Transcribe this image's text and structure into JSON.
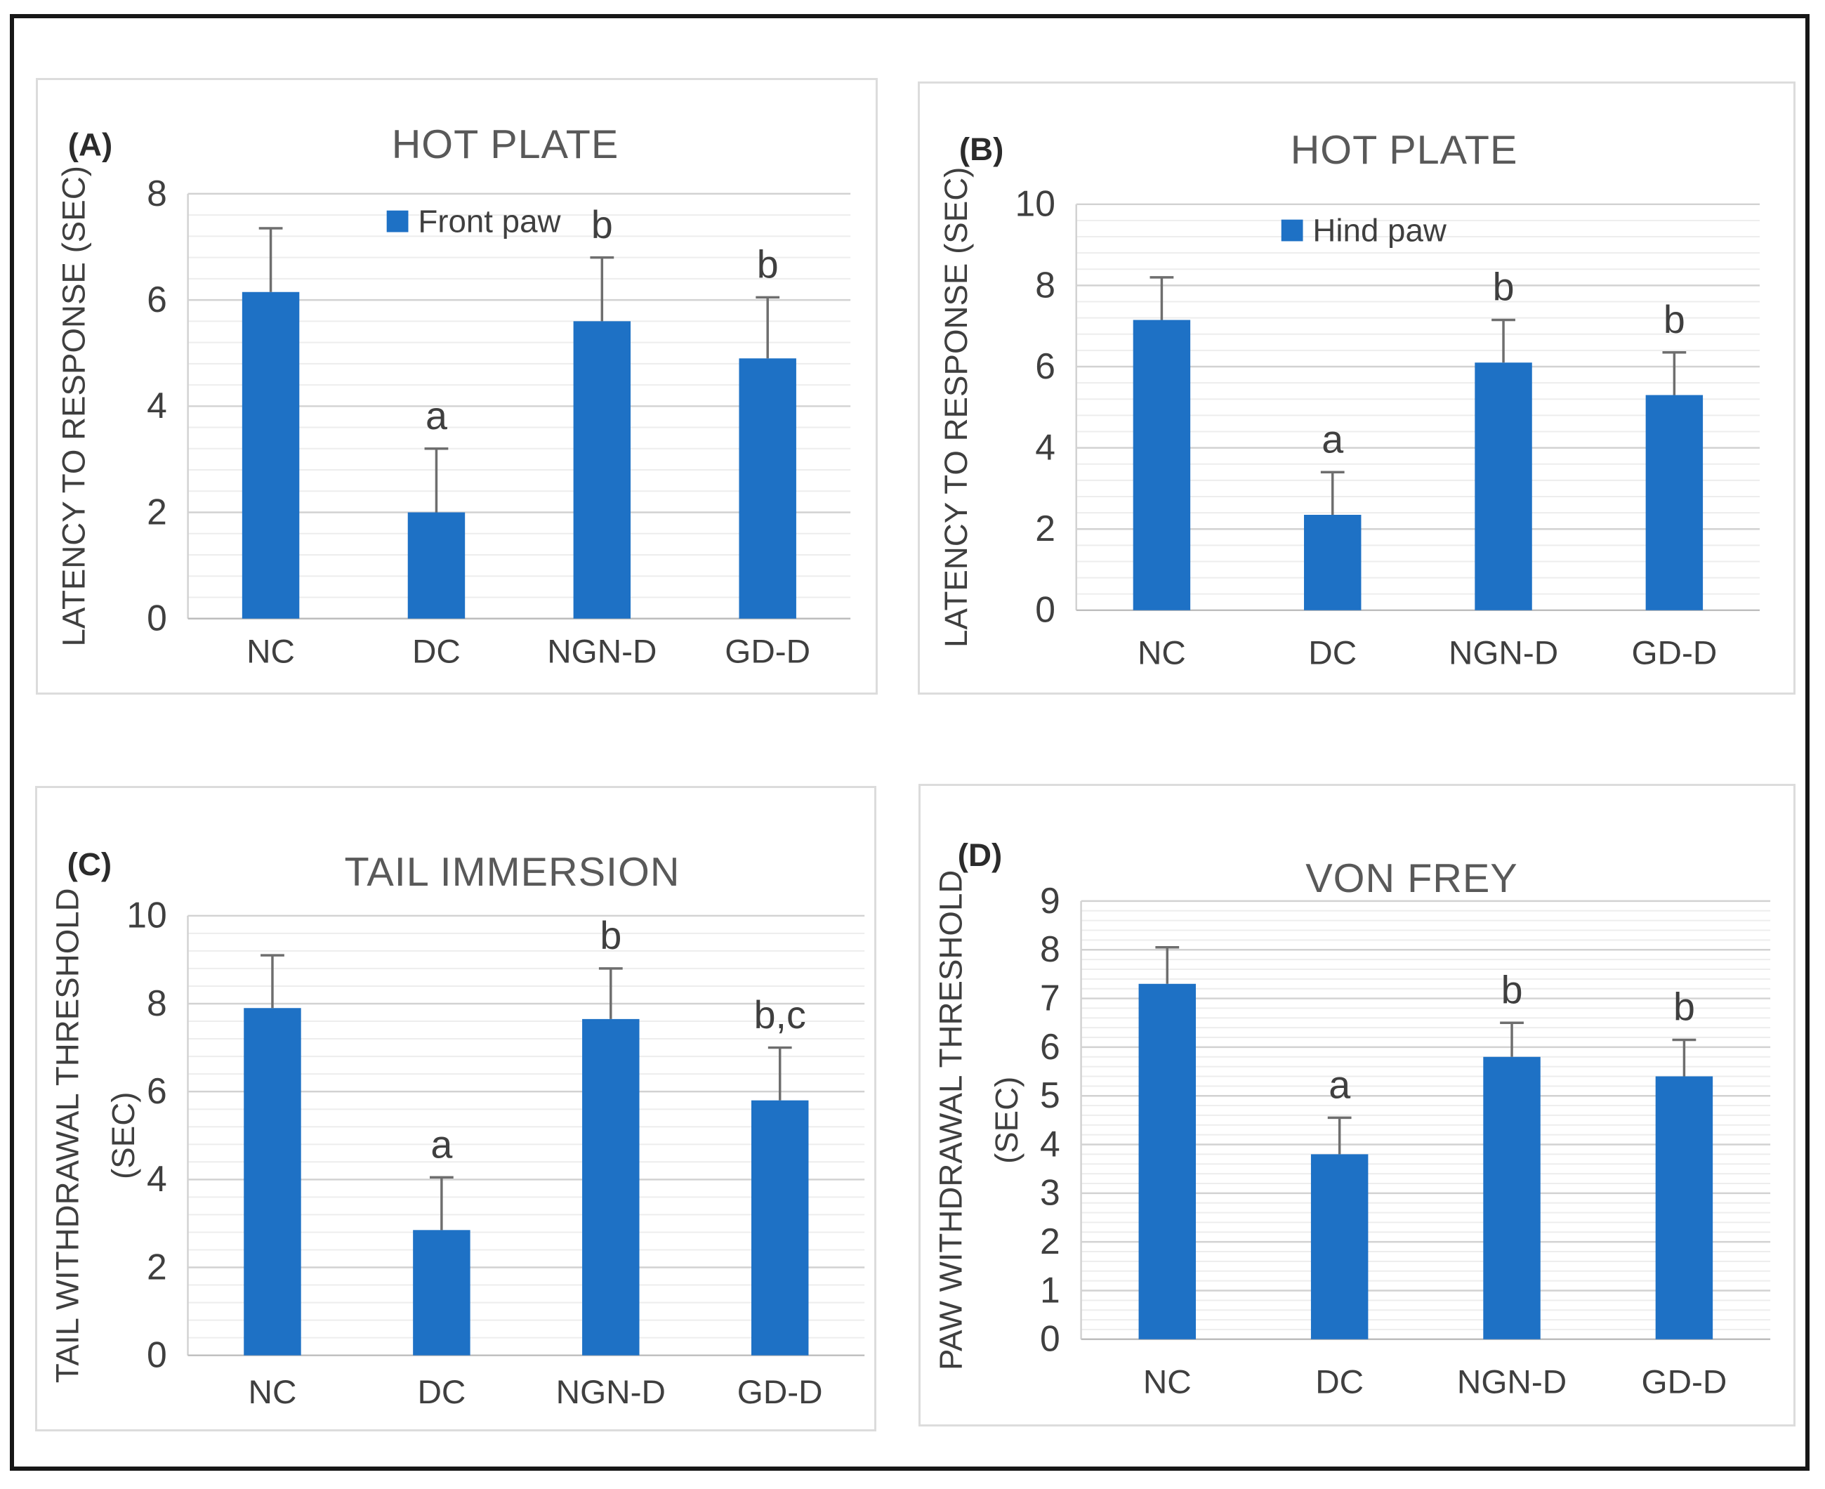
{
  "figure": {
    "kind": "four-panel bar chart figure",
    "colors": {
      "bar": "#1E71C5",
      "error_bar": "#6E6E6E",
      "grid_minor": "#EDEDED",
      "grid_major": "#D2D2D2",
      "axis_line": "#BDBDBD",
      "tick_text": "#3F3F3F",
      "title_text": "#595959",
      "panel_letter_text": "#2B2B2B",
      "panel_border": "#DCDCDC",
      "outer_border": "#171717"
    }
  },
  "chart_data": [
    {
      "type": "bar",
      "panel_letter": "(A)",
      "title": "HOT PLATE",
      "legend": {
        "label": "Front paw",
        "position": "top-center"
      },
      "categories": [
        "NC",
        "DC",
        "NGN-D",
        "GD-D"
      ],
      "values": [
        6.15,
        2.0,
        5.6,
        4.9
      ],
      "error_caps": [
        7.35,
        3.2,
        6.8,
        6.05
      ],
      "sig_letters": [
        "",
        "a",
        "b",
        "b"
      ],
      "xlabel": "",
      "ylabel": "LATENCY TO RESPONSE (SEC)",
      "ylabel_lines": [
        "LATENCY TO RESPONSE (SEC)"
      ],
      "ylim": [
        0,
        8
      ],
      "y_major_unit": 2,
      "y_minor_unit": 0.4,
      "grid": true
    },
    {
      "type": "bar",
      "panel_letter": "(B)",
      "title": "HOT PLATE",
      "legend": {
        "label": "Hind paw",
        "position": "top-center"
      },
      "categories": [
        "NC",
        "DC",
        "NGN-D",
        "GD-D"
      ],
      "values": [
        7.15,
        2.35,
        6.1,
        5.3
      ],
      "error_caps": [
        8.2,
        3.4,
        7.15,
        6.35
      ],
      "sig_letters": [
        "",
        "a",
        "b",
        "b"
      ],
      "xlabel": "",
      "ylabel": "LATENCY TO RESPONSE (SEC)",
      "ylabel_lines": [
        "LATENCY TO RESPONSE (SEC)"
      ],
      "ylim": [
        0,
        10
      ],
      "y_major_unit": 2,
      "y_minor_unit": 0.4,
      "grid": true
    },
    {
      "type": "bar",
      "panel_letter": "(C)",
      "title": "TAIL IMMERSION",
      "legend": null,
      "categories": [
        "NC",
        "DC",
        "NGN-D",
        "GD-D"
      ],
      "values": [
        7.9,
        2.85,
        7.65,
        5.8
      ],
      "error_caps": [
        9.1,
        4.05,
        8.8,
        7.0
      ],
      "sig_letters": [
        "",
        "a",
        "b",
        "b,c"
      ],
      "xlabel": "",
      "ylabel": "TAIL WITHDRAWAL THRESHOLD (SEC)",
      "ylabel_lines": [
        "TAIL WITHDRAWAL THRESHOLD",
        "(SEC)"
      ],
      "ylim": [
        0,
        10
      ],
      "y_major_unit": 2,
      "y_minor_unit": 0.4,
      "grid": true
    },
    {
      "type": "bar",
      "panel_letter": "(D)",
      "title": "VON FREY",
      "legend": null,
      "categories": [
        "NC",
        "DC",
        "NGN-D",
        "GD-D"
      ],
      "values": [
        7.3,
        3.8,
        5.8,
        5.4
      ],
      "error_caps": [
        8.05,
        4.55,
        6.5,
        6.15
      ],
      "sig_letters": [
        "",
        "a",
        "b",
        "b"
      ],
      "xlabel": "",
      "ylabel": "PAW WITHDRAWAL THRESHOLD (SEC)",
      "ylabel_lines": [
        "PAW WITHDRAWAL THRESHOLD",
        "(SEC)"
      ],
      "ylim": [
        0,
        9
      ],
      "y_major_unit": 1,
      "y_minor_unit": 0.2,
      "grid": true
    }
  ]
}
